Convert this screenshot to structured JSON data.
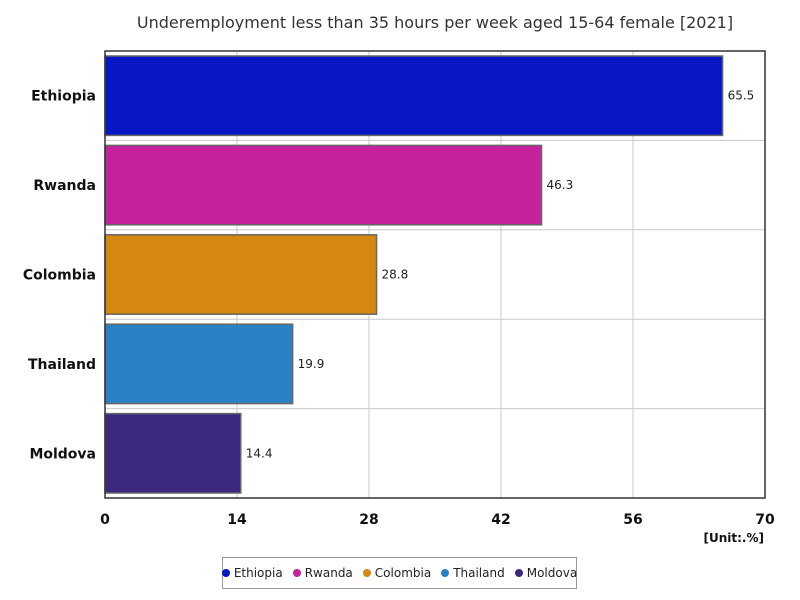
{
  "chart_data": {
    "type": "bar",
    "orientation": "horizontal",
    "title": "Underemployment less than 35 hours per week aged 15-64 female [2021]",
    "categories": [
      "Ethiopia",
      "Rwanda",
      "Colombia",
      "Thailand",
      "Moldova"
    ],
    "values": [
      65.5,
      46.3,
      28.8,
      19.9,
      14.4
    ],
    "value_labels": [
      "65.5",
      "46.3",
      "28.8",
      "19.9",
      "14.4"
    ],
    "colors": [
      "#0717c5",
      "#c6229d",
      "#d4880f",
      "#2a82c4",
      "#3d2880"
    ],
    "xlim": [
      0,
      70
    ],
    "xticks": [
      0,
      14,
      28,
      42,
      56,
      70
    ],
    "xtick_labels": [
      "0",
      "14",
      "28",
      "42",
      "56",
      "70"
    ],
    "unit": "[Unit:.%]",
    "grid": true,
    "legend_position": "bottom"
  }
}
